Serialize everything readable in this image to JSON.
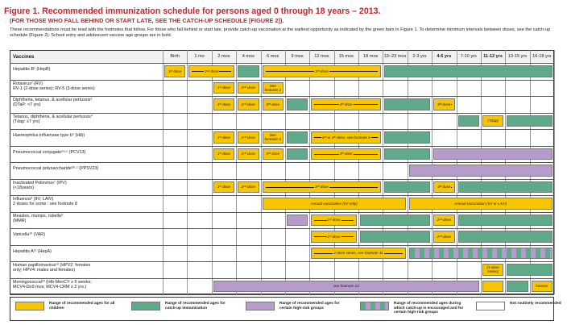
{
  "header": {
    "title": "Figure 1. Recommended immunization schedule for persons aged 0 through 18 years – 2013.",
    "subtitle": "(FOR THOSE WHO FALL BEHIND OR START LATE, SEE THE CATCH-UP SCHEDULE [FIGURE 2]).",
    "intro": "These recommendations must be read with the footnotes that follow. For those who fall behind or start late, provide catch-up vaccination at the earliest opportunity as indicated by the green bars in Figure 1. To determine minimum intervals between doses, see the catch-up schedule (Figure 2). School entry and adolescent vaccine age groups are in bold."
  },
  "table": {
    "vaccines_header": "Vaccines",
    "ages": [
      "Birth",
      "1 mo",
      "2 mos",
      "4 mos",
      "6 mos",
      "9 mos",
      "12 mos",
      "15 mos",
      "18 mos",
      "19–23 mos",
      "2-3 yrs",
      "4-6 yrs",
      "7-10 yrs",
      "11-12 yrs",
      "13-15 yrs",
      "16-18 yrs"
    ],
    "bold_ages": [
      11,
      13
    ],
    "rows": [
      {
        "name": "Hepatitis B¹ (HepB)",
        "sub": ""
      },
      {
        "name": "Rotavirus² (RV)",
        "sub": "RV-1 (2-dose series); RV-5 (3-dose series)"
      },
      {
        "name": "Diphtheria, tetanus, & acellular pertussis³",
        "sub": "(DTaP: <7 yrs)"
      },
      {
        "name": "Tetanus, diphtheria, & acellular pertussis⁴",
        "sub": "(Tdap: ≥7 yrs)"
      },
      {
        "name": "Haemophilus influenzae type b⁵ (Hib)",
        "sub": ""
      },
      {
        "name": "Pneumococcal conjugate⁶ᵃ·ᶜ (PCV13)",
        "sub": ""
      },
      {
        "name": "Pneumococcal polysaccharide⁶ᵇ·ᶜ (PPSV23)",
        "sub": ""
      },
      {
        "name": "Inactivated Poliovirus⁷ (IPV)",
        "sub": "(<18years)"
      },
      {
        "name": "Influenza⁸ (IIV; LAIV)",
        "sub": "2 doses for some : see footnote 8"
      },
      {
        "name": "Measles, mumps, rubella⁹",
        "sub": "(MMR)"
      },
      {
        "name": "Varicella¹⁰ (VAR)",
        "sub": ""
      },
      {
        "name": "Hepatitis A¹¹ (HepA)",
        "sub": ""
      },
      {
        "name": "Human papillomavirus¹² (HPV2: females",
        "sub": "only; HPV4: males and females)"
      },
      {
        "name": "Meningococcal¹³ (Hib-MenCY ≥ 6 weeks;",
        "sub": "MCV4-D≥9 mos; MCV4-CRM ≥ 2 yrs.)"
      }
    ],
    "bars": [
      {
        "row": 0,
        "from": 0,
        "to": 1,
        "color": "yellow",
        "label": "1ˢᵗ dose",
        "arrow": true
      },
      {
        "row": 0,
        "from": 1,
        "to": 3,
        "color": "yellow",
        "label": "2ⁿᵈ dose",
        "arrow": true
      },
      {
        "row": 0,
        "from": 3,
        "to": 4,
        "color": "green",
        "label": "",
        "arrow": false
      },
      {
        "row": 0,
        "from": 4,
        "to": 9,
        "color": "yellow",
        "label": "3ʳᵈ dose",
        "arrow": true
      },
      {
        "row": 0,
        "from": 9,
        "to": 16,
        "color": "green",
        "label": "",
        "arrow": false
      },
      {
        "row": 1,
        "from": 2,
        "to": 3,
        "color": "yellow",
        "label": "1ˢᵗ dose",
        "arrow": true
      },
      {
        "row": 1,
        "from": 3,
        "to": 4,
        "color": "yellow",
        "label": "2ⁿᵈ dose",
        "arrow": true
      },
      {
        "row": 1,
        "from": 4,
        "to": 5,
        "color": "yellow",
        "label": "See footnote 2",
        "arrow": false
      },
      {
        "row": 2,
        "from": 2,
        "to": 3,
        "color": "yellow",
        "label": "1ˢᵗ dose",
        "arrow": true
      },
      {
        "row": 2,
        "from": 3,
        "to": 4,
        "color": "yellow",
        "label": "2ⁿᵈ dose",
        "arrow": true
      },
      {
        "row": 2,
        "from": 4,
        "to": 5,
        "color": "yellow",
        "label": "3ʳᵈ dose",
        "arrow": true
      },
      {
        "row": 2,
        "from": 5,
        "to": 6,
        "color": "green",
        "label": "",
        "arrow": false
      },
      {
        "row": 2,
        "from": 6,
        "to": 9,
        "color": "yellow",
        "label": "4ᵗʰ dose",
        "arrow": true
      },
      {
        "row": 2,
        "from": 9,
        "to": 11,
        "color": "green",
        "label": "",
        "arrow": false
      },
      {
        "row": 2,
        "from": 11,
        "to": 12,
        "color": "yellow",
        "label": "5ᵗʰ dose",
        "arrow": true
      },
      {
        "row": 3,
        "from": 12,
        "to": 13,
        "color": "green",
        "label": "",
        "arrow": false
      },
      {
        "row": 3,
        "from": 13,
        "to": 14,
        "color": "yellow",
        "label": "(Tdap)",
        "arrow": false
      },
      {
        "row": 3,
        "from": 14,
        "to": 16,
        "color": "green",
        "label": "",
        "arrow": false
      },
      {
        "row": 4,
        "from": 2,
        "to": 3,
        "color": "yellow",
        "label": "1ˢᵗ dose",
        "arrow": true
      },
      {
        "row": 4,
        "from": 3,
        "to": 4,
        "color": "yellow",
        "label": "2ⁿᵈ dose",
        "arrow": true
      },
      {
        "row": 4,
        "from": 4,
        "to": 5,
        "color": "yellow",
        "label": "See footnote 5",
        "arrow": false
      },
      {
        "row": 4,
        "from": 5,
        "to": 6,
        "color": "green",
        "label": "",
        "arrow": false
      },
      {
        "row": 4,
        "from": 6,
        "to": 9,
        "color": "yellow",
        "label": "3ʳᵈ or 4ᵗʰ dose, see footnote 5",
        "arrow": true
      },
      {
        "row": 4,
        "from": 9,
        "to": 11,
        "color": "green",
        "label": "",
        "arrow": false
      },
      {
        "row": 5,
        "from": 2,
        "to": 3,
        "color": "yellow",
        "label": "1ˢᵗ dose",
        "arrow": true
      },
      {
        "row": 5,
        "from": 3,
        "to": 4,
        "color": "yellow",
        "label": "2ⁿᵈ dose",
        "arrow": true
      },
      {
        "row": 5,
        "from": 4,
        "to": 5,
        "color": "yellow",
        "label": "3ʳᵈ dose",
        "arrow": true
      },
      {
        "row": 5,
        "from": 5,
        "to": 6,
        "color": "green",
        "label": "",
        "arrow": false
      },
      {
        "row": 5,
        "from": 6,
        "to": 9,
        "color": "yellow",
        "label": "4ᵗʰ dose",
        "arrow": true
      },
      {
        "row": 5,
        "from": 9,
        "to": 11,
        "color": "green",
        "label": "",
        "arrow": false
      },
      {
        "row": 5,
        "from": 11,
        "to": 16,
        "color": "purple",
        "label": "",
        "arrow": false
      },
      {
        "row": 6,
        "from": 10,
        "to": 16,
        "color": "purple",
        "label": "",
        "arrow": false
      },
      {
        "row": 7,
        "from": 2,
        "to": 3,
        "color": "yellow",
        "label": "1ˢᵗ dose",
        "arrow": true
      },
      {
        "row": 7,
        "from": 3,
        "to": 4,
        "color": "yellow",
        "label": "2ⁿᵈ dose",
        "arrow": true
      },
      {
        "row": 7,
        "from": 4,
        "to": 9,
        "color": "yellow",
        "label": "3ʳᵈ dose",
        "arrow": true
      },
      {
        "row": 7,
        "from": 9,
        "to": 11,
        "color": "green",
        "label": "",
        "arrow": false
      },
      {
        "row": 7,
        "from": 11,
        "to": 12,
        "color": "yellow",
        "label": "4ᵗʰ dose",
        "arrow": true
      },
      {
        "row": 7,
        "from": 12,
        "to": 16,
        "color": "green",
        "label": "",
        "arrow": false
      },
      {
        "row": 8,
        "from": 4,
        "to": 10,
        "color": "yellow",
        "label": "Annual vaccination (IIV only)",
        "arrow": false
      },
      {
        "row": 8,
        "from": 10,
        "to": 16,
        "color": "yellow",
        "label": "Annual vaccination (IIV or LAIV)",
        "arrow": false
      },
      {
        "row": 9,
        "from": 5,
        "to": 6,
        "color": "purple",
        "label": "",
        "arrow": false
      },
      {
        "row": 9,
        "from": 6,
        "to": 8,
        "color": "yellow",
        "label": "1ˢᵗ dose",
        "arrow": true
      },
      {
        "row": 9,
        "from": 8,
        "to": 11,
        "color": "green",
        "label": "",
        "arrow": false
      },
      {
        "row": 9,
        "from": 11,
        "to": 12,
        "color": "yellow",
        "label": "2ⁿᵈ dose",
        "arrow": true
      },
      {
        "row": 9,
        "from": 12,
        "to": 16,
        "color": "green",
        "label": "",
        "arrow": false
      },
      {
        "row": 10,
        "from": 6,
        "to": 8,
        "color": "yellow",
        "label": "1ˢᵗ dose",
        "arrow": true
      },
      {
        "row": 10,
        "from": 8,
        "to": 11,
        "color": "green",
        "label": "",
        "arrow": false
      },
      {
        "row": 10,
        "from": 11,
        "to": 12,
        "color": "yellow",
        "label": "2ⁿᵈ dose",
        "arrow": true
      },
      {
        "row": 10,
        "from": 12,
        "to": 16,
        "color": "green",
        "label": "",
        "arrow": false
      },
      {
        "row": 11,
        "from": 6,
        "to": 10,
        "color": "yellow",
        "label": "2 dose series, see footnote 11",
        "arrow": true
      },
      {
        "row": 11,
        "from": 10,
        "to": 16,
        "color": "stripe",
        "label": "",
        "arrow": false
      },
      {
        "row": 12,
        "from": 13,
        "to": 14,
        "color": "yellow",
        "label": "(3-dose series)",
        "arrow": false
      },
      {
        "row": 12,
        "from": 14,
        "to": 16,
        "color": "green",
        "label": "",
        "arrow": false
      },
      {
        "row": 13,
        "from": 2,
        "to": 13,
        "color": "purple",
        "label": "see footnote 13",
        "arrow": false
      },
      {
        "row": 13,
        "from": 13,
        "to": 14,
        "color": "yellow",
        "label": "",
        "arrow": false
      },
      {
        "row": 13,
        "from": 14,
        "to": 15,
        "color": "green",
        "label": "",
        "arrow": false
      },
      {
        "row": 13,
        "from": 15,
        "to": 16,
        "color": "yellow",
        "label": "booster",
        "arrow": false
      }
    ]
  },
  "legend": [
    {
      "color": "yellow",
      "label": "Range of recommended ages for all children"
    },
    {
      "color": "green",
      "label": "Range of recommended ages for catch-up immunization"
    },
    {
      "color": "purple",
      "label": "Range of recommended ages for certain high-risk groups"
    },
    {
      "color": "stripe",
      "label": "Range of recommended ages during which catch-up is encouraged and for certain high-risk groups"
    },
    {
      "color": "white",
      "label": "Not routinely recommended"
    }
  ],
  "colors": {
    "yellow": "#f7c600",
    "green": "#5faa8a",
    "purple": "#b79bcc",
    "title": "#c0282d"
  }
}
